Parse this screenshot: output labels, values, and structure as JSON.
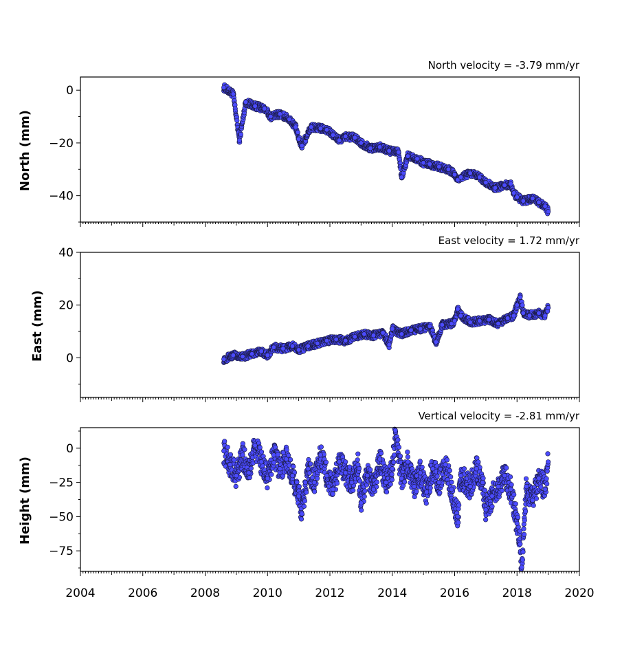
{
  "chart_data": [
    {
      "type": "scatter",
      "panel": "north",
      "title": "North velocity = -3.79 mm/yr",
      "ylabel": "North (mm)",
      "xlim": [
        2004,
        2020
      ],
      "ylim": [
        -50,
        5
      ],
      "yticks": [
        0,
        -20,
        -40
      ],
      "ytick_labels": [
        "0",
        "−20",
        "−40"
      ],
      "velocity_mm_per_yr": -3.79,
      "color": "#4b4bff",
      "series_points": [
        [
          2008.6,
          1.0
        ],
        [
          2008.9,
          -1.5
        ],
        [
          2009.1,
          -19.0
        ],
        [
          2009.3,
          -4.5
        ],
        [
          2009.6,
          -6.0
        ],
        [
          2009.9,
          -7.0
        ],
        [
          2010.1,
          -10.0
        ],
        [
          2010.4,
          -9.0
        ],
        [
          2010.7,
          -11.0
        ],
        [
          2010.9,
          -14.0
        ],
        [
          2011.0,
          -18.5
        ],
        [
          2011.1,
          -21.0
        ],
        [
          2011.4,
          -14.0
        ],
        [
          2011.7,
          -14.5
        ],
        [
          2011.9,
          -15.0
        ],
        [
          2012.1,
          -17.0
        ],
        [
          2012.3,
          -19.0
        ],
        [
          2012.5,
          -17.5
        ],
        [
          2012.8,
          -18.0
        ],
        [
          2013.0,
          -20.0
        ],
        [
          2013.3,
          -22.0
        ],
        [
          2013.6,
          -21.5
        ],
        [
          2013.9,
          -23.0
        ],
        [
          2014.2,
          -23.5
        ],
        [
          2014.3,
          -33.0
        ],
        [
          2014.5,
          -25.0
        ],
        [
          2014.8,
          -26.0
        ],
        [
          2015.0,
          -27.5
        ],
        [
          2015.2,
          -28.0
        ],
        [
          2015.5,
          -29.0
        ],
        [
          2015.8,
          -30.0
        ],
        [
          2016.0,
          -32.0
        ],
        [
          2016.1,
          -34.0
        ],
        [
          2016.2,
          -33.0
        ],
        [
          2016.5,
          -31.5
        ],
        [
          2016.8,
          -33.0
        ],
        [
          2017.0,
          -35.0
        ],
        [
          2017.3,
          -37.0
        ],
        [
          2017.6,
          -36.0
        ],
        [
          2017.8,
          -35.5
        ],
        [
          2017.9,
          -39.0
        ],
        [
          2018.0,
          -40.5
        ],
        [
          2018.2,
          -42.0
        ],
        [
          2018.5,
          -41.0
        ],
        [
          2018.7,
          -42.5
        ],
        [
          2018.9,
          -44.0
        ],
        [
          2019.0,
          -46.0
        ]
      ]
    },
    {
      "type": "scatter",
      "panel": "east",
      "title": "East velocity = 1.72 mm/yr",
      "ylabel": "East (mm)",
      "xlim": [
        2004,
        2020
      ],
      "ylim": [
        -15,
        40
      ],
      "yticks": [
        40,
        20,
        0
      ],
      "ytick_labels": [
        "40",
        "20",
        "0"
      ],
      "velocity_mm_per_yr": 1.72,
      "color": "#4b4bff",
      "series_points": [
        [
          2008.6,
          -0.5
        ],
        [
          2008.9,
          1.0
        ],
        [
          2009.2,
          0.5
        ],
        [
          2009.5,
          1.5
        ],
        [
          2009.8,
          2.5
        ],
        [
          2010.0,
          1.0
        ],
        [
          2010.2,
          4.0
        ],
        [
          2010.5,
          3.5
        ],
        [
          2010.8,
          4.5
        ],
        [
          2011.0,
          3.0
        ],
        [
          2011.3,
          4.5
        ],
        [
          2011.6,
          5.5
        ],
        [
          2011.9,
          6.5
        ],
        [
          2012.2,
          7.0
        ],
        [
          2012.5,
          6.5
        ],
        [
          2012.8,
          8.0
        ],
        [
          2013.1,
          9.0
        ],
        [
          2013.4,
          8.5
        ],
        [
          2013.7,
          9.5
        ],
        [
          2013.9,
          5.0
        ],
        [
          2014.0,
          11.0
        ],
        [
          2014.3,
          9.0
        ],
        [
          2014.6,
          10.5
        ],
        [
          2014.9,
          11.0
        ],
        [
          2015.2,
          12.0
        ],
        [
          2015.4,
          6.0
        ],
        [
          2015.6,
          12.5
        ],
        [
          2015.9,
          13.0
        ],
        [
          2016.0,
          14.0
        ],
        [
          2016.1,
          18.5
        ],
        [
          2016.2,
          16.0
        ],
        [
          2016.5,
          13.5
        ],
        [
          2016.8,
          14.0
        ],
        [
          2017.1,
          14.5
        ],
        [
          2017.4,
          13.0
        ],
        [
          2017.7,
          15.0
        ],
        [
          2017.9,
          16.0
        ],
        [
          2018.0,
          20.0
        ],
        [
          2018.1,
          23.0
        ],
        [
          2018.2,
          17.0
        ],
        [
          2018.4,
          16.0
        ],
        [
          2018.7,
          17.0
        ],
        [
          2018.9,
          16.0
        ],
        [
          2019.0,
          19.0
        ]
      ]
    },
    {
      "type": "scatter",
      "panel": "height",
      "title": "Vertical velocity = -2.81 mm/yr",
      "ylabel": "Height (mm)",
      "xlim": [
        2004,
        2020
      ],
      "ylim": [
        -90,
        15
      ],
      "yticks": [
        0,
        -25,
        -50,
        -75
      ],
      "ytick_labels": [
        "0",
        "−25",
        "−50",
        "−75"
      ],
      "velocity_mm_per_yr": -2.81,
      "color": "#4b4bff",
      "series_points": [
        [
          2008.6,
          -2.0
        ],
        [
          2008.8,
          -12.0
        ],
        [
          2009.0,
          -20.0
        ],
        [
          2009.2,
          -5.0
        ],
        [
          2009.4,
          -18.0
        ],
        [
          2009.6,
          2.0
        ],
        [
          2009.8,
          -10.0
        ],
        [
          2010.0,
          -22.0
        ],
        [
          2010.2,
          -5.0
        ],
        [
          2010.4,
          -15.0
        ],
        [
          2010.6,
          -8.0
        ],
        [
          2010.8,
          -20.0
        ],
        [
          2011.0,
          -35.0
        ],
        [
          2011.1,
          -48.0
        ],
        [
          2011.3,
          -15.0
        ],
        [
          2011.5,
          -25.0
        ],
        [
          2011.7,
          -5.0
        ],
        [
          2011.9,
          -20.0
        ],
        [
          2012.1,
          -30.0
        ],
        [
          2012.3,
          -10.0
        ],
        [
          2012.5,
          -18.0
        ],
        [
          2012.7,
          -25.0
        ],
        [
          2012.9,
          -12.0
        ],
        [
          2013.0,
          -40.0
        ],
        [
          2013.2,
          -20.0
        ],
        [
          2013.4,
          -30.0
        ],
        [
          2013.6,
          -8.0
        ],
        [
          2013.8,
          -25.0
        ],
        [
          2014.0,
          -15.0
        ],
        [
          2014.1,
          13.0
        ],
        [
          2014.3,
          -22.0
        ],
        [
          2014.5,
          -10.0
        ],
        [
          2014.7,
          -28.0
        ],
        [
          2014.9,
          -18.0
        ],
        [
          2015.1,
          -32.0
        ],
        [
          2015.3,
          -15.0
        ],
        [
          2015.5,
          -25.0
        ],
        [
          2015.7,
          -12.0
        ],
        [
          2015.9,
          -30.0
        ],
        [
          2016.1,
          -50.0
        ],
        [
          2016.2,
          -20.0
        ],
        [
          2016.5,
          -28.0
        ],
        [
          2016.7,
          -15.0
        ],
        [
          2016.9,
          -25.0
        ],
        [
          2017.0,
          -45.0
        ],
        [
          2017.2,
          -35.0
        ],
        [
          2017.4,
          -28.0
        ],
        [
          2017.6,
          -20.0
        ],
        [
          2017.8,
          -30.0
        ],
        [
          2018.0,
          -55.0
        ],
        [
          2018.1,
          -70.0
        ],
        [
          2018.15,
          -87.0
        ],
        [
          2018.3,
          -28.0
        ],
        [
          2018.5,
          -38.0
        ],
        [
          2018.7,
          -22.0
        ],
        [
          2018.9,
          -30.0
        ],
        [
          2019.0,
          -10.0
        ]
      ]
    }
  ],
  "shared_x_axis": {
    "ticks": [
      2004,
      2006,
      2008,
      2010,
      2012,
      2014,
      2016,
      2018,
      2020
    ],
    "tick_labels": [
      "2004",
      "2006",
      "2008",
      "2010",
      "2012",
      "2014",
      "2016",
      "2018",
      "2020"
    ]
  }
}
